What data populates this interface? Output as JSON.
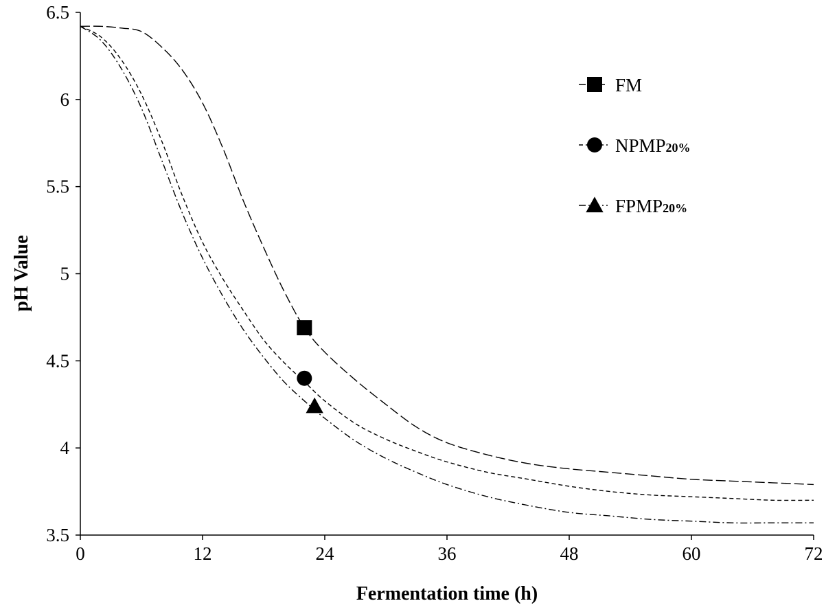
{
  "chart_data": {
    "type": "line",
    "xlabel": "Fermentation time (h)",
    "ylabel": "pH  Value",
    "xlim": [
      0,
      72
    ],
    "ylim": [
      3.5,
      6.5
    ],
    "x_ticks": [
      "0",
      "12",
      "24",
      "36",
      "48",
      "60",
      "72"
    ],
    "y_ticks": [
      "3.5",
      "4",
      "4.5",
      "5",
      "5.5",
      "6",
      "6.5"
    ],
    "grid": false,
    "legend_position": "top-right",
    "series": [
      {
        "name": "FM",
        "name_main": "FM",
        "name_sub": "",
        "marker": "square",
        "marker_at": [
          22,
          4.69
        ],
        "line_style": "dashed",
        "x": [
          0,
          2,
          4,
          6,
          8,
          10,
          12,
          14,
          16,
          18,
          20,
          22,
          24,
          27,
          30,
          33,
          36,
          40,
          44,
          48,
          52,
          56,
          60,
          64,
          68,
          72
        ],
        "y": [
          6.42,
          6.42,
          6.41,
          6.39,
          6.3,
          6.17,
          5.98,
          5.72,
          5.42,
          5.15,
          4.9,
          4.69,
          4.55,
          4.39,
          4.25,
          4.12,
          4.03,
          3.96,
          3.91,
          3.88,
          3.86,
          3.84,
          3.82,
          3.81,
          3.8,
          3.79
        ]
      },
      {
        "name": "NPMP20%",
        "name_main": "NPMP",
        "name_sub": "20%",
        "marker": "circle",
        "marker_at": [
          22,
          4.4
        ],
        "line_style": "short-dashed",
        "x": [
          0,
          2,
          4,
          6,
          8,
          10,
          12,
          14,
          16,
          18,
          20,
          22,
          24,
          27,
          30,
          33,
          36,
          40,
          44,
          48,
          52,
          56,
          60,
          64,
          68,
          72
        ],
        "y": [
          6.42,
          6.36,
          6.23,
          6.03,
          5.76,
          5.45,
          5.18,
          4.97,
          4.79,
          4.62,
          4.49,
          4.38,
          4.27,
          4.14,
          4.05,
          3.98,
          3.92,
          3.86,
          3.82,
          3.78,
          3.75,
          3.73,
          3.72,
          3.71,
          3.7,
          3.7
        ]
      },
      {
        "name": "FPMP20%",
        "name_main": "FPMP",
        "name_sub": "20%",
        "marker": "triangle",
        "marker_at": [
          23,
          4.24
        ],
        "line_style": "dash-dot",
        "x": [
          0,
          2,
          4,
          6,
          8,
          10,
          12,
          14,
          16,
          18,
          20,
          22,
          24,
          27,
          30,
          33,
          36,
          40,
          44,
          48,
          52,
          56,
          60,
          64,
          68,
          72
        ],
        "y": [
          6.42,
          6.34,
          6.18,
          5.95,
          5.65,
          5.35,
          5.09,
          4.87,
          4.68,
          4.52,
          4.38,
          4.27,
          4.17,
          4.04,
          3.94,
          3.86,
          3.79,
          3.72,
          3.67,
          3.63,
          3.61,
          3.59,
          3.58,
          3.57,
          3.57,
          3.57
        ]
      }
    ]
  }
}
